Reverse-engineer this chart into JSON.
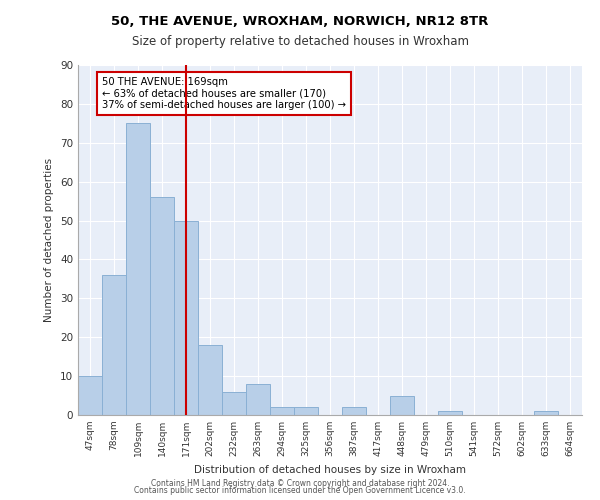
{
  "title1": "50, THE AVENUE, WROXHAM, NORWICH, NR12 8TR",
  "title2": "Size of property relative to detached houses in Wroxham",
  "xlabel": "Distribution of detached houses by size in Wroxham",
  "ylabel": "Number of detached properties",
  "bin_labels": [
    "47sqm",
    "78sqm",
    "109sqm",
    "140sqm",
    "171sqm",
    "202sqm",
    "232sqm",
    "263sqm",
    "294sqm",
    "325sqm",
    "356sqm",
    "387sqm",
    "417sqm",
    "448sqm",
    "479sqm",
    "510sqm",
    "541sqm",
    "572sqm",
    "602sqm",
    "633sqm",
    "664sqm"
  ],
  "bar_values": [
    10,
    36,
    75,
    56,
    50,
    18,
    6,
    8,
    2,
    2,
    0,
    2,
    0,
    5,
    0,
    1,
    0,
    0,
    0,
    1,
    0
  ],
  "bar_color": "#b8cfe8",
  "bar_edge_color": "#8ab0d4",
  "vline_x": 4,
  "vline_color": "#cc0000",
  "annotation_text": "50 THE AVENUE: 169sqm\n← 63% of detached houses are smaller (170)\n37% of semi-detached houses are larger (100) →",
  "annotation_box_color": "#ffffff",
  "annotation_box_edge": "#cc0000",
  "ylim": [
    0,
    90
  ],
  "yticks": [
    0,
    10,
    20,
    30,
    40,
    50,
    60,
    70,
    80,
    90
  ],
  "background_color": "#e8eef8",
  "footer1": "Contains HM Land Registry data © Crown copyright and database right 2024.",
  "footer2": "Contains public sector information licensed under the Open Government Licence v3.0."
}
